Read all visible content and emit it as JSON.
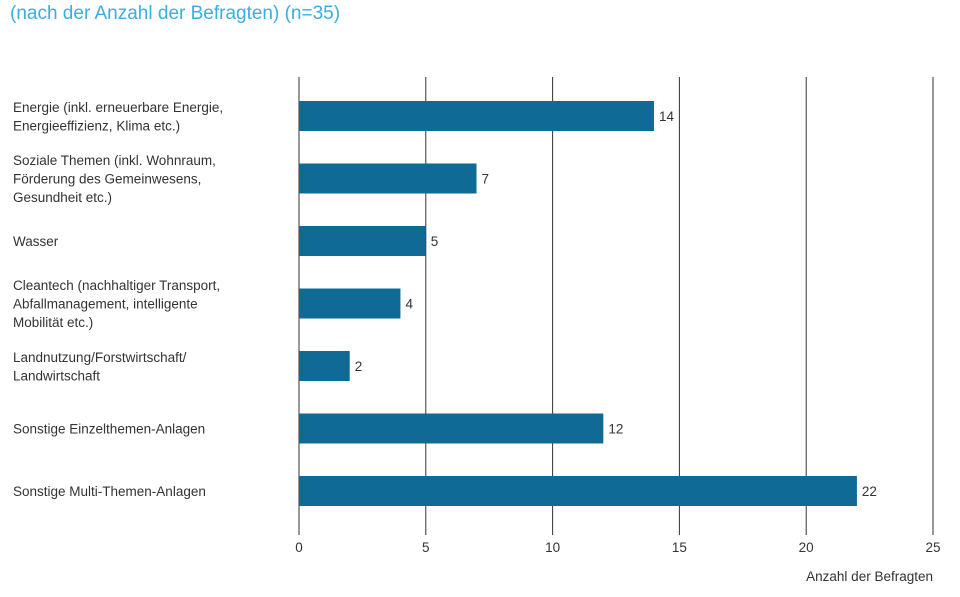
{
  "title": "(nach der Anzahl der Befragten) (n=35)",
  "chart_data": {
    "type": "bar",
    "orientation": "horizontal",
    "title": "(nach der Anzahl der Befragten) (n=35)",
    "categories": [
      [
        "Energie (inkl. erneuerbare Energie,",
        "Energieeffizienz, Klima etc.)"
      ],
      [
        "Soziale Themen (inkl. Wohnraum,",
        "Förderung des Gemeinwesens,",
        "Gesundheit etc.)"
      ],
      [
        "Wasser"
      ],
      [
        "Cleantech (nachhaltiger Transport,",
        "Abfallmanagement, intelligente",
        "Mobilität etc.)"
      ],
      [
        "Landnutzung/Forstwirtschaft/",
        "Landwirtschaft"
      ],
      [
        "Sonstige Einzelthemen-Anlagen"
      ],
      [
        "Sonstige Multi-Themen-Anlagen"
      ]
    ],
    "values": [
      14,
      7,
      5,
      4,
      2,
      12,
      22
    ],
    "xlabel": "Anzahl der Befragten",
    "ylabel": "",
    "xlim": [
      0,
      25
    ],
    "xticks": [
      0,
      5,
      10,
      15,
      20,
      25
    ],
    "grid": true,
    "colors": {
      "bar": "#0f6a95",
      "title": "#3aaee0",
      "grid": "#333333"
    }
  }
}
